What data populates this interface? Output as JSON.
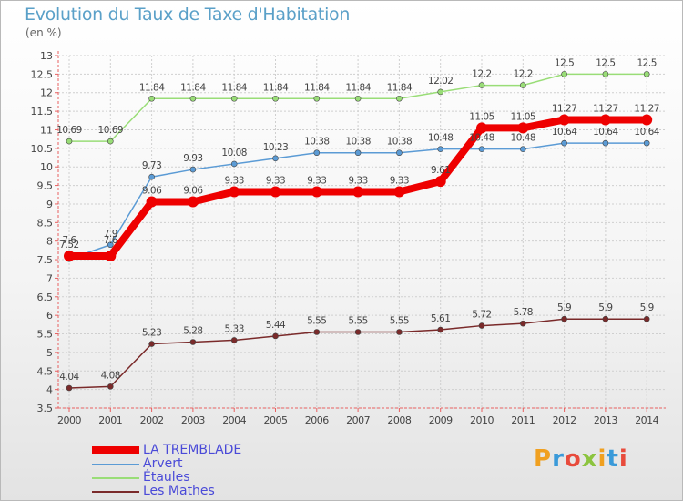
{
  "title": "Evolution du Taux de Taxe d'Habitation",
  "unit": "(en %)",
  "logo": [
    "P",
    "r",
    "o",
    "x",
    "i",
    "t",
    "i"
  ],
  "chart_data": {
    "type": "line",
    "x": [
      2000,
      2001,
      2002,
      2003,
      2004,
      2005,
      2006,
      2007,
      2008,
      2009,
      2010,
      2011,
      2012,
      2013,
      2014
    ],
    "ylim": [
      3.5,
      13
    ],
    "yticks": [
      3.5,
      4,
      4.5,
      5,
      5.5,
      6,
      6.5,
      7,
      7.5,
      8,
      8.5,
      9,
      9.5,
      10,
      10.5,
      11,
      11.5,
      12,
      12.5,
      13
    ],
    "grid": true,
    "legend_position": "bottom-left",
    "series": [
      {
        "name": "LA TREMBLADE",
        "color": "#ee0000",
        "width": 8,
        "values": [
          7.6,
          7.6,
          9.06,
          9.06,
          9.33,
          9.33,
          9.33,
          9.33,
          9.33,
          9.61,
          11.05,
          11.05,
          11.27,
          11.27,
          11.27
        ],
        "labels": [
          "7.6",
          "7.6",
          "9.06",
          "9.06",
          "9.33",
          "9.33",
          "9.33",
          "9.33",
          "9.33",
          "9.61",
          "11.05",
          "11.05",
          "11.27",
          "11.27",
          "11.27"
        ]
      },
      {
        "name": "Arvert",
        "color": "#5b9bd5",
        "width": 1.5,
        "values": [
          7.52,
          7.9,
          9.73,
          9.93,
          10.08,
          10.23,
          10.38,
          10.38,
          10.38,
          10.48,
          10.48,
          10.48,
          10.64,
          10.64,
          10.64
        ],
        "labels": [
          "7.52",
          "7.9",
          "9.73",
          "9.93",
          "10.08",
          "10.23",
          "10.38",
          "10.38",
          "10.38",
          "10.48",
          "10.48",
          "10.48",
          "10.64",
          "10.64",
          "10.64"
        ]
      },
      {
        "name": "Étaules",
        "color": "#99dd77",
        "width": 1.5,
        "values": [
          10.69,
          10.69,
          11.84,
          11.84,
          11.84,
          11.84,
          11.84,
          11.84,
          11.84,
          12.02,
          12.2,
          12.2,
          12.5,
          12.5,
          12.5
        ],
        "labels": [
          "10.69",
          "10.69",
          "11.84",
          "11.84",
          "11.84",
          "11.84",
          "11.84",
          "11.84",
          "11.84",
          "12.02",
          "12.2",
          "12.2",
          "12.5",
          "12.5",
          "12.5"
        ]
      },
      {
        "name": "Les Mathes",
        "color": "#7a2a2a",
        "width": 1.5,
        "values": [
          4.04,
          4.08,
          5.23,
          5.28,
          5.33,
          5.44,
          5.55,
          5.55,
          5.55,
          5.61,
          5.72,
          5.78,
          5.9,
          5.9,
          5.9
        ],
        "labels": [
          "4.04",
          "4.08",
          "5.23",
          "5.28",
          "5.33",
          "5.44",
          "5.55",
          "5.55",
          "5.55",
          "5.61",
          "5.72",
          "5.78",
          "5.9",
          "5.9",
          "5.9"
        ]
      }
    ]
  },
  "legend": [
    {
      "label": "LA TREMBLADE",
      "color": "#ee0000",
      "text_color": "#4a4ad8",
      "width": 8
    },
    {
      "label": "Arvert",
      "color": "#5b9bd5",
      "text_color": "#4a4ad8",
      "width": 2
    },
    {
      "label": "Étaules",
      "color": "#99dd77",
      "text_color": "#4a4ad8",
      "width": 2
    },
    {
      "label": "Les Mathes",
      "color": "#7a2a2a",
      "text_color": "#4a4ad8",
      "width": 2
    }
  ]
}
